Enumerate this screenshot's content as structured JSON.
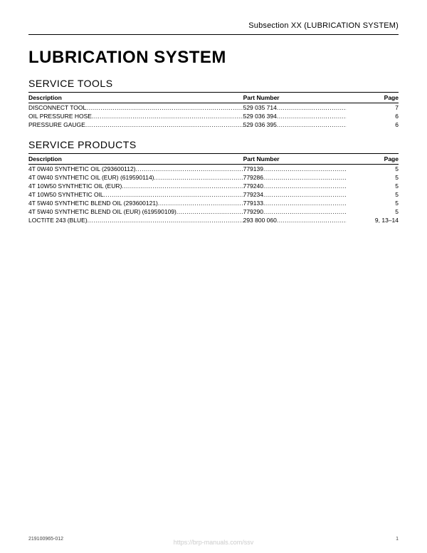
{
  "header": {
    "subsection": "Subsection XX (LUBRICATION SYSTEM)"
  },
  "title": "LUBRICATION SYSTEM",
  "sections": {
    "tools": {
      "heading": "SERVICE TOOLS",
      "columns": {
        "desc": "Description",
        "part": "Part Number",
        "page": "Page"
      },
      "rows": [
        {
          "desc": "DISCONNECT TOOL",
          "part": "529 035 714",
          "page": "7"
        },
        {
          "desc": "OIL PRESSURE HOSE",
          "part": "529 036 394",
          "page": "6"
        },
        {
          "desc": "PRESSURE GAUGE",
          "part": "529 036 395",
          "page": "6"
        }
      ]
    },
    "products": {
      "heading": "SERVICE PRODUCTS",
      "columns": {
        "desc": "Description",
        "part": "Part Number",
        "page": "Page"
      },
      "rows": [
        {
          "desc": "4T 0W40 SYNTHETIC OIL (293600112)",
          "part": "779139",
          "page": "5"
        },
        {
          "desc": "4T 0W40 SYNTHETIC OIL (EUR) (619590114)",
          "part": "779286",
          "page": "5"
        },
        {
          "desc": "4T 10W50 SYNTHETIC OIL (EUR)",
          "part": "779240",
          "page": "5"
        },
        {
          "desc": "4T 10W50 SYNTHETIC OIL",
          "part": "779234",
          "page": "5"
        },
        {
          "desc": "4T 5W40 SYNTHETIC BLEND OIL (293600121)",
          "part": "779133",
          "page": "5"
        },
        {
          "desc": "4T 5W40 SYNTHETIC BLEND OIL (EUR) (619590109)",
          "part": "779290",
          "page": "5"
        },
        {
          "desc": "LOCTITE 243 (BLUE)",
          "part": "293 800 060",
          "page": "9, 13–14"
        }
      ]
    }
  },
  "footer": {
    "docnum": "219100965-012",
    "pagenum": "1"
  },
  "watermark": "https://brp-manuals.com/ssv"
}
